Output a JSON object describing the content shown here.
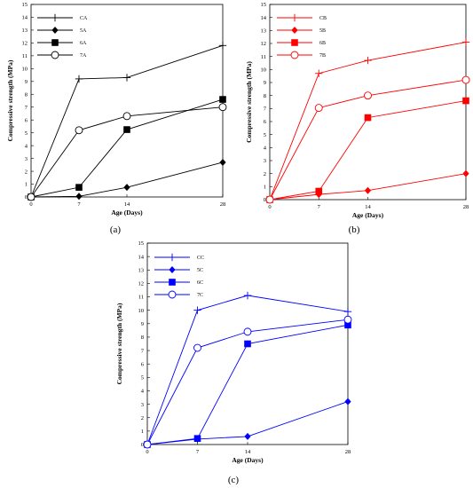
{
  "chart_data": [
    {
      "type": "line",
      "panel_label": "(a)",
      "color": "#000000",
      "xlabel": "Age (Days)",
      "ylabel": "Compressive strength (MPa)",
      "x": [
        0,
        7,
        14,
        28
      ],
      "xticks": [
        "0",
        "7",
        "14",
        "28"
      ],
      "ylim": [
        0,
        15
      ],
      "yticks": [
        "0",
        "1",
        "2",
        "3",
        "4",
        "5",
        "6",
        "7",
        "8",
        "9",
        "10",
        "11",
        "12",
        "13",
        "14",
        "15"
      ],
      "legend_position": "top-left",
      "series": [
        {
          "name": "CA",
          "marker": "plus",
          "values": [
            0,
            9.2,
            9.3,
            11.8
          ]
        },
        {
          "name": "5A",
          "marker": "diamond",
          "values": [
            0,
            0.05,
            0.75,
            2.7
          ]
        },
        {
          "name": "6A",
          "marker": "square",
          "values": [
            0,
            0.75,
            5.25,
            7.6
          ]
        },
        {
          "name": "7A",
          "marker": "circle",
          "values": [
            0,
            5.2,
            6.3,
            7.0
          ]
        }
      ]
    },
    {
      "type": "line",
      "panel_label": "(b)",
      "color": "#ff0000",
      "xlabel": "Age (Days)",
      "ylabel": "Compressive strength (MPa)",
      "x": [
        0,
        7,
        14,
        28
      ],
      "xticks": [
        "0",
        "7",
        "14",
        "28"
      ],
      "ylim": [
        0,
        15
      ],
      "yticks": [
        "0",
        "1",
        "2",
        "3",
        "4",
        "5",
        "6",
        "7",
        "8",
        "9",
        "10",
        "11",
        "12",
        "13",
        "14",
        "15"
      ],
      "legend_position": "top-left",
      "series": [
        {
          "name": "CB",
          "marker": "plus",
          "values": [
            0,
            9.7,
            10.7,
            12.1
          ]
        },
        {
          "name": "5B",
          "marker": "diamond",
          "values": [
            0,
            0.4,
            0.7,
            2.0
          ]
        },
        {
          "name": "6B",
          "marker": "square",
          "values": [
            0,
            0.65,
            6.3,
            7.6
          ]
        },
        {
          "name": "7B",
          "marker": "circle",
          "values": [
            0,
            7.05,
            8.0,
            9.2
          ]
        }
      ]
    },
    {
      "type": "line",
      "panel_label": "(c)",
      "color": "#0000ff",
      "xlabel": "Age (Days)",
      "ylabel": "Compressive strength (MPa)",
      "x": [
        0,
        7,
        14,
        28
      ],
      "xticks": [
        "0",
        "7",
        "14",
        "28"
      ],
      "ylim": [
        0,
        15
      ],
      "yticks": [
        "0",
        "1",
        "2",
        "3",
        "4",
        "5",
        "6",
        "7",
        "8",
        "9",
        "10",
        "11",
        "12",
        "13",
        "14",
        "15"
      ],
      "legend_position": "top-left",
      "series": [
        {
          "name": "CC",
          "marker": "plus",
          "values": [
            0,
            10.0,
            11.1,
            9.9
          ]
        },
        {
          "name": "5C",
          "marker": "diamond",
          "values": [
            0,
            0.4,
            0.6,
            3.2
          ]
        },
        {
          "name": "6C",
          "marker": "square",
          "values": [
            0,
            0.45,
            7.5,
            8.9
          ]
        },
        {
          "name": "7C",
          "marker": "circle",
          "values": [
            0,
            7.2,
            8.4,
            9.3
          ]
        }
      ]
    }
  ]
}
